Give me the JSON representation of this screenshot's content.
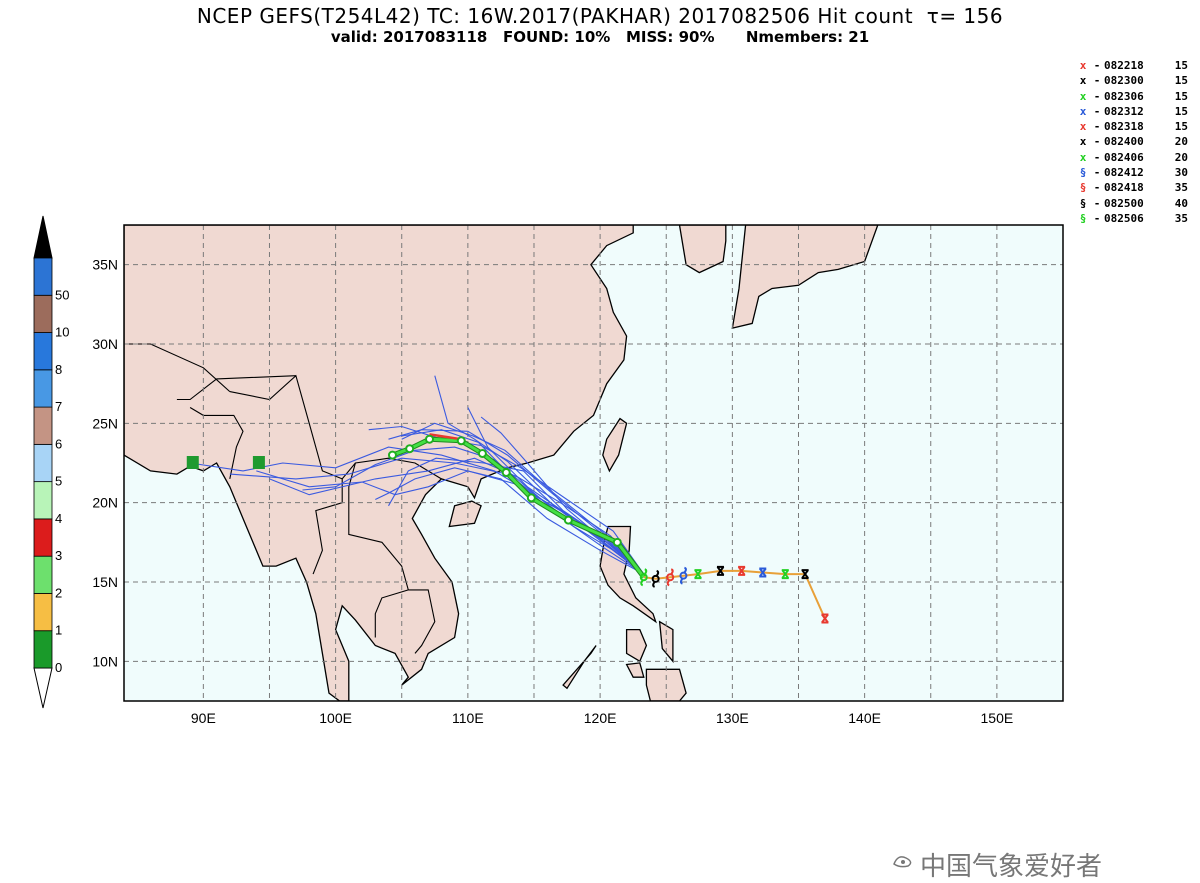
{
  "title": "NCEP GEFS(T254L42) TC: 16W.2017(PAKHAR) 2017082506 Hit count  τ= 156",
  "subtitle": "valid: 2017083118   FOUND: 10%   MISS: 90%      Nmembers: 21",
  "map": {
    "lon_range": [
      84,
      155
    ],
    "lat_range": [
      7.5,
      37.5
    ],
    "lon_ticks": [
      "90E",
      "100E",
      "110E",
      "120E",
      "130E",
      "140E",
      "150E"
    ],
    "lat_ticks": [
      "10N",
      "15N",
      "20N",
      "25N",
      "30N",
      "35N"
    ],
    "grid": true,
    "land_color": "#f0d9d2",
    "ocean_color": "#f0fcfc"
  },
  "colorbar": {
    "labels": [
      "0",
      "1",
      "2",
      "3",
      "4",
      "5",
      "6",
      "7",
      "8",
      "10",
      "50"
    ],
    "colors": [
      "#1a9a2a",
      "#f6be44",
      "#6de06d",
      "#dc1c1c",
      "#b8f4b8",
      "#a8d4f6",
      "#c49484",
      "#4898e4",
      "#2878dc",
      "#9c6c5c",
      "#2c74d4"
    ]
  },
  "legend": [
    {
      "symbol": "x",
      "color": "#e8392f",
      "time": "082218",
      "value": "15"
    },
    {
      "symbol": "x",
      "color": "#000000",
      "time": "082300",
      "value": "15"
    },
    {
      "symbol": "x",
      "color": "#22d022",
      "time": "082306",
      "value": "15"
    },
    {
      "symbol": "x",
      "color": "#2a5ad8",
      "time": "082312",
      "value": "15"
    },
    {
      "symbol": "x",
      "color": "#e8392f",
      "time": "082318",
      "value": "15"
    },
    {
      "symbol": "x",
      "color": "#000000",
      "time": "082400",
      "value": "20"
    },
    {
      "symbol": "x",
      "color": "#22d022",
      "time": "082406",
      "value": "20"
    },
    {
      "symbol": "§",
      "color": "#2a5ad8",
      "time": "082412",
      "value": "30"
    },
    {
      "symbol": "§",
      "color": "#e8392f",
      "time": "082418",
      "value": "35"
    },
    {
      "symbol": "§",
      "color": "#000000",
      "time": "082500",
      "value": "40"
    },
    {
      "symbol": "§",
      "color": "#22d022",
      "time": "082506",
      "value": "35"
    }
  ],
  "observed_track": [
    {
      "lon": 137.0,
      "lat": 12.7,
      "symbol": "x",
      "color": "#e8392f"
    },
    {
      "lon": 135.5,
      "lat": 15.5,
      "symbol": "x",
      "color": "#000000"
    },
    {
      "lon": 134.0,
      "lat": 15.5,
      "symbol": "x",
      "color": "#22d022"
    },
    {
      "lon": 132.3,
      "lat": 15.6,
      "symbol": "x",
      "color": "#2a5ad8"
    },
    {
      "lon": 130.7,
      "lat": 15.7,
      "symbol": "x",
      "color": "#e8392f"
    },
    {
      "lon": 129.1,
      "lat": 15.7,
      "symbol": "x",
      "color": "#000000"
    },
    {
      "lon": 127.4,
      "lat": 15.5,
      "symbol": "x",
      "color": "#22d022"
    },
    {
      "lon": 126.3,
      "lat": 15.4,
      "symbol": "§",
      "color": "#2a5ad8"
    },
    {
      "lon": 125.3,
      "lat": 15.3,
      "symbol": "§",
      "color": "#e8392f"
    },
    {
      "lon": 124.2,
      "lat": 15.2,
      "symbol": "§",
      "color": "#000000"
    },
    {
      "lon": 123.3,
      "lat": 15.3,
      "symbol": "§",
      "color": "#22d022"
    }
  ],
  "mean_track": [
    {
      "lon": 123.3,
      "lat": 15.3
    },
    {
      "lon": 121.3,
      "lat": 17.5
    },
    {
      "lon": 117.6,
      "lat": 18.9
    },
    {
      "lon": 114.8,
      "lat": 20.3
    },
    {
      "lon": 112.9,
      "lat": 21.9
    },
    {
      "lon": 111.1,
      "lat": 23.1
    },
    {
      "lon": 109.5,
      "lat": 23.9
    },
    {
      "lon": 107.1,
      "lat": 24.0
    },
    {
      "lon": 105.6,
      "lat": 23.4
    },
    {
      "lon": 104.3,
      "lat": 23.0
    }
  ],
  "mean_track_red_segment": [
    {
      "lon": 107.1,
      "lat": 24.3
    },
    {
      "lon": 109.5,
      "lat": 24.0
    }
  ],
  "member_tracks": [
    [
      {
        "lon": 123.3,
        "lat": 15.5
      },
      {
        "lon": 120.0,
        "lat": 18.0
      },
      {
        "lon": 116.0,
        "lat": 20.0
      },
      {
        "lon": 112.0,
        "lat": 22.0
      },
      {
        "lon": 108.0,
        "lat": 23.0
      },
      {
        "lon": 104.0,
        "lat": 23.5
      },
      {
        "lon": 100.0,
        "lat": 22.2
      },
      {
        "lon": 96.0,
        "lat": 22.5
      },
      {
        "lon": 93.0,
        "lat": 22.0
      },
      {
        "lon": 89.0,
        "lat": 22.5
      }
    ],
    [
      {
        "lon": 123.3,
        "lat": 15.5
      },
      {
        "lon": 120.5,
        "lat": 17.5
      },
      {
        "lon": 117.0,
        "lat": 19.3
      },
      {
        "lon": 113.0,
        "lat": 21.8
      },
      {
        "lon": 109.0,
        "lat": 22.5
      },
      {
        "lon": 105.0,
        "lat": 22.8
      },
      {
        "lon": 101.0,
        "lat": 21.8
      },
      {
        "lon": 97.0,
        "lat": 21.5
      },
      {
        "lon": 92.0,
        "lat": 21.8
      }
    ],
    [
      {
        "lon": 123.3,
        "lat": 15.5
      },
      {
        "lon": 120.0,
        "lat": 17.7
      },
      {
        "lon": 116.5,
        "lat": 19.8
      },
      {
        "lon": 113.0,
        "lat": 22.6
      },
      {
        "lon": 110.5,
        "lat": 24.0
      },
      {
        "lon": 108.5,
        "lat": 25.0
      },
      {
        "lon": 107.5,
        "lat": 28.0
      }
    ],
    [
      {
        "lon": 123.3,
        "lat": 15.5
      },
      {
        "lon": 121.0,
        "lat": 17.2
      },
      {
        "lon": 118.0,
        "lat": 19.0
      },
      {
        "lon": 114.5,
        "lat": 21.0
      },
      {
        "lon": 111.5,
        "lat": 23.5
      },
      {
        "lon": 110.0,
        "lat": 26.0
      }
    ],
    [
      {
        "lon": 123.3,
        "lat": 15.5
      },
      {
        "lon": 120.5,
        "lat": 17.3
      },
      {
        "lon": 117.0,
        "lat": 19.5
      },
      {
        "lon": 113.5,
        "lat": 21.2
      },
      {
        "lon": 110.0,
        "lat": 22.0
      },
      {
        "lon": 107.0,
        "lat": 21.0
      },
      {
        "lon": 104.5,
        "lat": 20.5
      },
      {
        "lon": 102.0,
        "lat": 21.3
      },
      {
        "lon": 98.0,
        "lat": 21.0
      },
      {
        "lon": 94.0,
        "lat": 22.0
      }
    ],
    [
      {
        "lon": 123.3,
        "lat": 15.5
      },
      {
        "lon": 120.5,
        "lat": 17.8
      },
      {
        "lon": 116.5,
        "lat": 20.5
      },
      {
        "lon": 113.0,
        "lat": 23.0
      },
      {
        "lon": 110.0,
        "lat": 24.5
      },
      {
        "lon": 106.5,
        "lat": 24.6
      },
      {
        "lon": 104.0,
        "lat": 24.0
      }
    ],
    [
      {
        "lon": 123.3,
        "lat": 15.5
      },
      {
        "lon": 121.0,
        "lat": 18.2
      },
      {
        "lon": 117.5,
        "lat": 20.2
      },
      {
        "lon": 114.0,
        "lat": 22.2
      },
      {
        "lon": 111.0,
        "lat": 23.6
      },
      {
        "lon": 108.0,
        "lat": 24.0
      },
      {
        "lon": 105.0,
        "lat": 24.8
      },
      {
        "lon": 102.5,
        "lat": 24.6
      }
    ],
    [
      {
        "lon": 123.3,
        "lat": 15.5
      },
      {
        "lon": 120.0,
        "lat": 17.0
      },
      {
        "lon": 116.0,
        "lat": 19.0
      },
      {
        "lon": 112.5,
        "lat": 21.5
      },
      {
        "lon": 109.0,
        "lat": 22.2
      },
      {
        "lon": 106.0,
        "lat": 21.5
      },
      {
        "lon": 104.0,
        "lat": 20.6
      },
      {
        "lon": 103.0,
        "lat": 20.2
      }
    ],
    [
      {
        "lon": 123.3,
        "lat": 15.5
      },
      {
        "lon": 120.5,
        "lat": 17.5
      },
      {
        "lon": 117.5,
        "lat": 19.6
      },
      {
        "lon": 114.5,
        "lat": 22.5
      },
      {
        "lon": 112.5,
        "lat": 24.4
      },
      {
        "lon": 111.0,
        "lat": 25.4
      }
    ],
    [
      {
        "lon": 123.3,
        "lat": 15.5
      },
      {
        "lon": 120.8,
        "lat": 17.9
      },
      {
        "lon": 117.0,
        "lat": 20.0
      },
      {
        "lon": 113.8,
        "lat": 21.6
      },
      {
        "lon": 110.5,
        "lat": 22.8
      },
      {
        "lon": 107.0,
        "lat": 22.0
      },
      {
        "lon": 103.0,
        "lat": 21.5
      },
      {
        "lon": 98.0,
        "lat": 20.5
      },
      {
        "lon": 95.0,
        "lat": 21.5
      }
    ],
    [
      {
        "lon": 123.3,
        "lat": 15.5
      },
      {
        "lon": 120.2,
        "lat": 17.2
      },
      {
        "lon": 116.8,
        "lat": 19.2
      },
      {
        "lon": 113.6,
        "lat": 21.4
      },
      {
        "lon": 110.8,
        "lat": 23.8
      },
      {
        "lon": 108.0,
        "lat": 24.6
      },
      {
        "lon": 105.0,
        "lat": 24.2
      }
    ],
    [
      {
        "lon": 123.3,
        "lat": 15.5
      },
      {
        "lon": 120.6,
        "lat": 17.6
      },
      {
        "lon": 117.2,
        "lat": 19.5
      },
      {
        "lon": 114.2,
        "lat": 22.0
      },
      {
        "lon": 111.2,
        "lat": 22.5
      },
      {
        "lon": 107.6,
        "lat": 22.8
      },
      {
        "lon": 105.5,
        "lat": 22.0
      },
      {
        "lon": 104.0,
        "lat": 19.8
      }
    ],
    [
      {
        "lon": 123.3,
        "lat": 15.5
      },
      {
        "lon": 121.0,
        "lat": 17.0
      },
      {
        "lon": 118.0,
        "lat": 18.5
      },
      {
        "lon": 115.0,
        "lat": 20.6
      },
      {
        "lon": 112.0,
        "lat": 22.7
      },
      {
        "lon": 109.0,
        "lat": 23.5
      },
      {
        "lon": 106.0,
        "lat": 23.3
      },
      {
        "lon": 103.0,
        "lat": 22.4
      },
      {
        "lon": 100.0,
        "lat": 21.0
      },
      {
        "lon": 97.5,
        "lat": 20.8
      }
    ],
    [
      {
        "lon": 123.3,
        "lat": 15.5
      },
      {
        "lon": 120.4,
        "lat": 18.0
      },
      {
        "lon": 116.2,
        "lat": 20.8
      },
      {
        "lon": 112.8,
        "lat": 23.3
      },
      {
        "lon": 110.4,
        "lat": 24.2
      },
      {
        "lon": 107.5,
        "lat": 25.0
      },
      {
        "lon": 105.0,
        "lat": 24.0
      }
    ]
  ],
  "member_end_markers": [
    {
      "lon": 89.2,
      "lat": 22.5
    },
    {
      "lon": 94.2,
      "lat": 22.5
    }
  ],
  "watermark": "中国气象爱好者"
}
